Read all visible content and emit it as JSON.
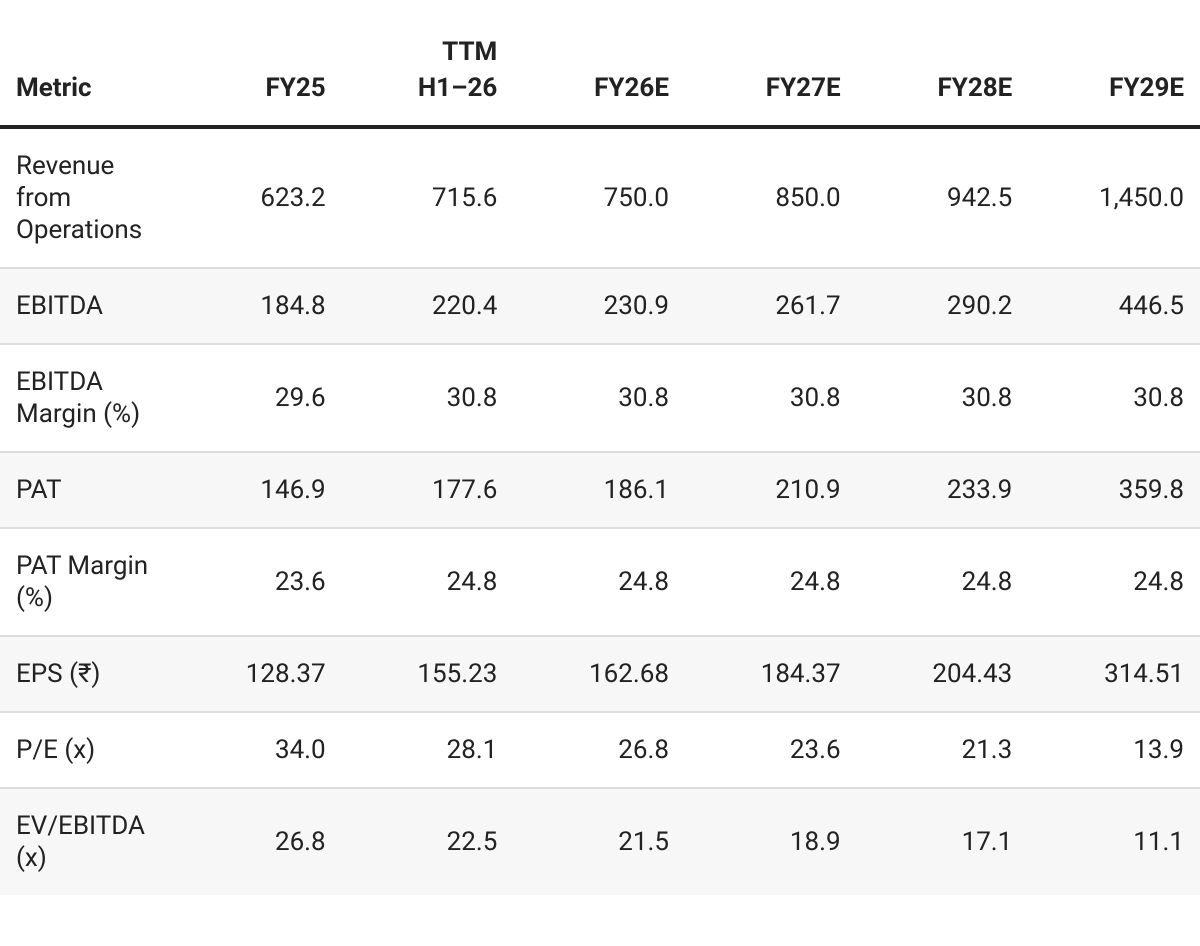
{
  "table": {
    "header": [
      "Metric",
      "FY25",
      "TTM H1–26",
      "FY26E",
      "FY27E",
      "FY28E",
      "FY29E"
    ],
    "rows": [
      [
        "Revenue from Operations",
        "623.2",
        "715.6",
        "750.0",
        "850.0",
        "942.5",
        "1,450.0"
      ],
      [
        "EBITDA",
        "184.8",
        "220.4",
        "230.9",
        "261.7",
        "290.2",
        "446.5"
      ],
      [
        "EBITDA Margin (%)",
        "29.6",
        "30.8",
        "30.8",
        "30.8",
        "30.8",
        "30.8"
      ],
      [
        "PAT",
        "146.9",
        "177.6",
        "186.1",
        "210.9",
        "233.9",
        "359.8"
      ],
      [
        "PAT Margin (%)",
        "23.6",
        "24.8",
        "24.8",
        "24.8",
        "24.8",
        "24.8"
      ],
      [
        "EPS (₹)",
        "128.37",
        "155.23",
        "162.68",
        "184.37",
        "204.43",
        "314.51"
      ],
      [
        "P/E (x)",
        "34.0",
        "28.1",
        "26.8",
        "23.6",
        "21.3",
        "13.9"
      ],
      [
        "EV/EBITDA (x)",
        "26.8",
        "22.5",
        "21.5",
        "18.9",
        "17.1",
        "11.1"
      ]
    ]
  }
}
